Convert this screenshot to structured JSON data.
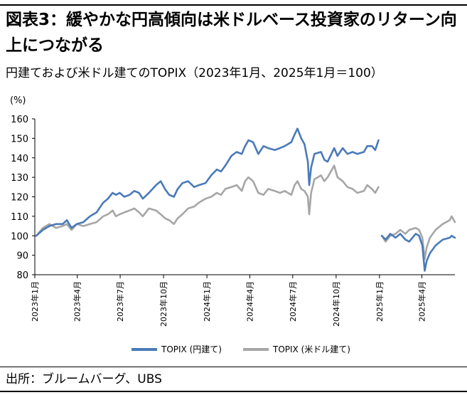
{
  "title": "図表3：緩やかな円高傾向は米ドルベース投資家のリターン向上につながる",
  "subtitle": "円建ておよび米ドル建てのTOPIX（2023年1月、2025年1月＝100）",
  "source": "出所：ブルームバーグ、UBS",
  "colors": {
    "yen": "#4a7ab8",
    "usd": "#a6a6a6"
  },
  "chart_data": {
    "type": "line",
    "ylabel": "(%)",
    "ylim": [
      80,
      160
    ],
    "yticks": [
      "80",
      "90",
      "100",
      "110",
      "120",
      "130",
      "140",
      "150",
      "160"
    ],
    "xlim": [
      "2023-01-01",
      "2025-06-10"
    ],
    "xticks": [
      {
        "date": "2023-01-01",
        "label": "2023年1月"
      },
      {
        "date": "2023-04-01",
        "label": "2023年4月"
      },
      {
        "date": "2023-07-01",
        "label": "2023年7月"
      },
      {
        "date": "2023-10-01",
        "label": "2023年10月"
      },
      {
        "date": "2024-01-01",
        "label": "2024年1月"
      },
      {
        "date": "2024-04-01",
        "label": "2024年4月"
      },
      {
        "date": "2024-07-01",
        "label": "2024年7月"
      },
      {
        "date": "2024-10-01",
        "label": "2024年10月"
      },
      {
        "date": "2025-01-01",
        "label": "2025年1月"
      },
      {
        "date": "2025-04-01",
        "label": "2025年4月"
      }
    ],
    "grid": false,
    "legend_position": "bottom",
    "series": [
      {
        "name": "TOPIX (円建て)",
        "segments": [
          [
            [
              "2023-01-04",
              100
            ],
            [
              "2023-01-18",
              103
            ],
            [
              "2023-02-01",
              105
            ],
            [
              "2023-02-15",
              106
            ],
            [
              "2023-03-01",
              106
            ],
            [
              "2023-03-10",
              108
            ],
            [
              "2023-03-20",
              104
            ],
            [
              "2023-03-31",
              106
            ],
            [
              "2023-04-14",
              107
            ],
            [
              "2023-04-28",
              110
            ],
            [
              "2023-05-12",
              112
            ],
            [
              "2023-05-26",
              117
            ],
            [
              "2023-06-05",
              119
            ],
            [
              "2023-06-15",
              122
            ],
            [
              "2023-06-22",
              121
            ],
            [
              "2023-06-30",
              122
            ],
            [
              "2023-07-10",
              120
            ],
            [
              "2023-07-21",
              121
            ],
            [
              "2023-07-31",
              123
            ],
            [
              "2023-08-10",
              122
            ],
            [
              "2023-08-18",
              119
            ],
            [
              "2023-08-31",
              122
            ],
            [
              "2023-09-15",
              126
            ],
            [
              "2023-09-25",
              128
            ],
            [
              "2023-10-04",
              124
            ],
            [
              "2023-10-13",
              121
            ],
            [
              "2023-10-23",
              120
            ],
            [
              "2023-10-31",
              124
            ],
            [
              "2023-11-10",
              127
            ],
            [
              "2023-11-22",
              128
            ],
            [
              "2023-12-05",
              125
            ],
            [
              "2023-12-15",
              126
            ],
            [
              "2023-12-29",
              127
            ],
            [
              "2024-01-10",
              131
            ],
            [
              "2024-01-22",
              134
            ],
            [
              "2024-01-31",
              133
            ],
            [
              "2024-02-09",
              136
            ],
            [
              "2024-02-22",
              141
            ],
            [
              "2024-03-04",
              143
            ],
            [
              "2024-03-15",
              142
            ],
            [
              "2024-03-22",
              146
            ],
            [
              "2024-03-29",
              149
            ],
            [
              "2024-04-08",
              148
            ],
            [
              "2024-04-19",
              142
            ],
            [
              "2024-04-30",
              146
            ],
            [
              "2024-05-10",
              145
            ],
            [
              "2024-05-24",
              144
            ],
            [
              "2024-06-04",
              145
            ],
            [
              "2024-06-14",
              146
            ],
            [
              "2024-06-28",
              148
            ],
            [
              "2024-07-05",
              152
            ],
            [
              "2024-07-11",
              155
            ],
            [
              "2024-07-19",
              150
            ],
            [
              "2024-07-26",
              147
            ],
            [
              "2024-08-02",
              138
            ],
            [
              "2024-08-05",
              126
            ],
            [
              "2024-08-09",
              135
            ],
            [
              "2024-08-16",
              142
            ],
            [
              "2024-08-30",
              143
            ],
            [
              "2024-09-06",
              139
            ],
            [
              "2024-09-13",
              138
            ],
            [
              "2024-09-27",
              145
            ],
            [
              "2024-10-04",
              141
            ],
            [
              "2024-10-15",
              145
            ],
            [
              "2024-10-25",
              142
            ],
            [
              "2024-11-05",
              143
            ],
            [
              "2024-11-15",
              142
            ],
            [
              "2024-11-29",
              143
            ],
            [
              "2024-12-06",
              146
            ],
            [
              "2024-12-16",
              146
            ],
            [
              "2024-12-23",
              144
            ],
            [
              "2024-12-30",
              149
            ]
          ],
          [
            [
              "2025-01-06",
              100
            ],
            [
              "2025-01-14",
              98
            ],
            [
              "2025-01-24",
              101
            ],
            [
              "2025-02-04",
              99
            ],
            [
              "2025-02-14",
              101
            ],
            [
              "2025-02-25",
              98
            ],
            [
              "2025-03-05",
              97
            ],
            [
              "2025-03-19",
              101
            ],
            [
              "2025-03-26",
              100
            ],
            [
              "2025-04-02",
              95
            ],
            [
              "2025-04-07",
              82
            ],
            [
              "2025-04-11",
              87
            ],
            [
              "2025-04-18",
              91
            ],
            [
              "2025-04-30",
              95
            ],
            [
              "2025-05-15",
              98
            ],
            [
              "2025-05-30",
              99
            ],
            [
              "2025-06-03",
              100
            ],
            [
              "2025-06-10",
              99
            ]
          ]
        ]
      },
      {
        "name": "TOPIX (米ドル建て)",
        "segments": [
          [
            [
              "2023-01-04",
              100
            ],
            [
              "2023-01-18",
              104
            ],
            [
              "2023-02-01",
              106
            ],
            [
              "2023-02-15",
              104
            ],
            [
              "2023-03-01",
              105
            ],
            [
              "2023-03-10",
              106
            ],
            [
              "2023-03-20",
              103
            ],
            [
              "2023-03-31",
              106
            ],
            [
              "2023-04-14",
              105
            ],
            [
              "2023-04-28",
              106
            ],
            [
              "2023-05-12",
              107
            ],
            [
              "2023-05-26",
              110
            ],
            [
              "2023-06-05",
              111
            ],
            [
              "2023-06-15",
              113
            ],
            [
              "2023-06-22",
              110
            ],
            [
              "2023-06-30",
              111
            ],
            [
              "2023-07-10",
              112
            ],
            [
              "2023-07-21",
              113
            ],
            [
              "2023-07-31",
              114
            ],
            [
              "2023-08-10",
              112
            ],
            [
              "2023-08-18",
              110
            ],
            [
              "2023-08-31",
              114
            ],
            [
              "2023-09-15",
              113
            ],
            [
              "2023-09-25",
              111
            ],
            [
              "2023-10-04",
              109
            ],
            [
              "2023-10-13",
              108
            ],
            [
              "2023-10-23",
              106
            ],
            [
              "2023-10-31",
              109
            ],
            [
              "2023-11-10",
              111
            ],
            [
              "2023-11-22",
              114
            ],
            [
              "2023-12-05",
              115
            ],
            [
              "2023-12-15",
              117
            ],
            [
              "2023-12-29",
              119
            ],
            [
              "2024-01-10",
              120
            ],
            [
              "2024-01-22",
              122
            ],
            [
              "2024-01-31",
              121
            ],
            [
              "2024-02-09",
              124
            ],
            [
              "2024-02-22",
              125
            ],
            [
              "2024-03-04",
              126
            ],
            [
              "2024-03-15",
              123
            ],
            [
              "2024-03-22",
              128
            ],
            [
              "2024-03-29",
              130
            ],
            [
              "2024-04-08",
              128
            ],
            [
              "2024-04-19",
              122
            ],
            [
              "2024-04-30",
              121
            ],
            [
              "2024-05-10",
              124
            ],
            [
              "2024-05-24",
              123
            ],
            [
              "2024-06-04",
              122
            ],
            [
              "2024-06-14",
              123
            ],
            [
              "2024-06-28",
              121
            ],
            [
              "2024-07-05",
              126
            ],
            [
              "2024-07-11",
              128
            ],
            [
              "2024-07-19",
              124
            ],
            [
              "2024-07-26",
              123
            ],
            [
              "2024-08-02",
              120
            ],
            [
              "2024-08-05",
              111
            ],
            [
              "2024-08-09",
              122
            ],
            [
              "2024-08-16",
              129
            ],
            [
              "2024-08-30",
              131
            ],
            [
              "2024-09-06",
              128
            ],
            [
              "2024-09-13",
              130
            ],
            [
              "2024-09-27",
              136
            ],
            [
              "2024-10-04",
              130
            ],
            [
              "2024-10-15",
              128
            ],
            [
              "2024-10-25",
              125
            ],
            [
              "2024-11-05",
              124
            ],
            [
              "2024-11-15",
              122
            ],
            [
              "2024-11-29",
              123
            ],
            [
              "2024-12-06",
              126
            ],
            [
              "2024-12-16",
              124
            ],
            [
              "2024-12-23",
              122
            ],
            [
              "2024-12-30",
              125
            ]
          ],
          [
            [
              "2025-01-06",
              100
            ],
            [
              "2025-01-14",
              97
            ],
            [
              "2025-01-24",
              100
            ],
            [
              "2025-02-04",
              101
            ],
            [
              "2025-02-14",
              103
            ],
            [
              "2025-02-25",
              101
            ],
            [
              "2025-03-05",
              103
            ],
            [
              "2025-03-19",
              104
            ],
            [
              "2025-03-26",
              103
            ],
            [
              "2025-04-02",
              99
            ],
            [
              "2025-04-07",
              88
            ],
            [
              "2025-04-11",
              94
            ],
            [
              "2025-04-18",
              99
            ],
            [
              "2025-04-30",
              103
            ],
            [
              "2025-05-15",
              106
            ],
            [
              "2025-05-30",
              108
            ],
            [
              "2025-06-03",
              110
            ],
            [
              "2025-06-10",
              107
            ]
          ]
        ]
      }
    ]
  }
}
